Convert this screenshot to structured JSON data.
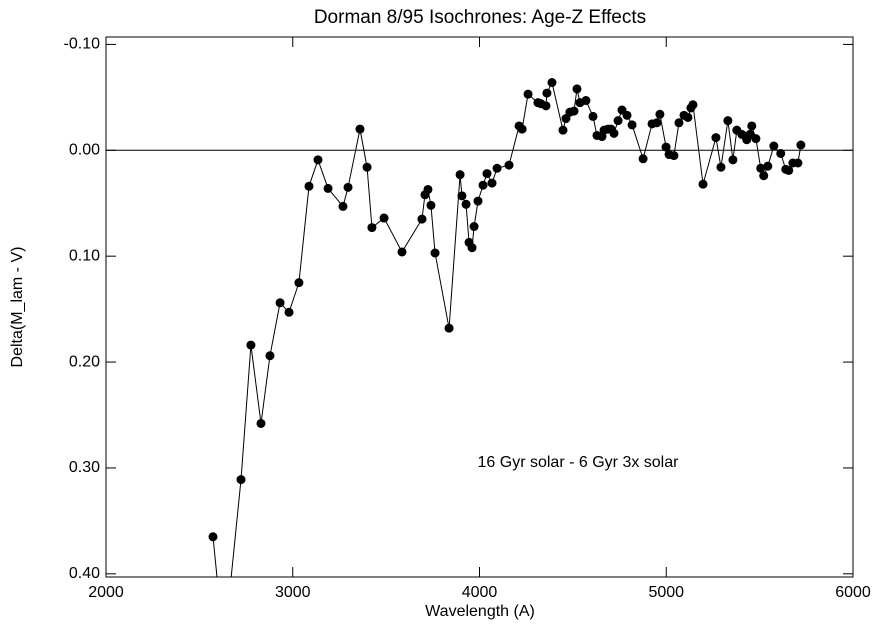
{
  "chart_data": {
    "type": "line",
    "title": "Dorman 8/95 Isochrones: Age-Z Effects",
    "xlabel": "Wavelength (A)",
    "ylabel": "Delta(M_lam - V)",
    "annotation": "16 Gyr solar - 6 Gyr 3x solar",
    "color": "#000000",
    "markers": true,
    "reference_line": 0,
    "xlim": [
      2000,
      6000
    ],
    "ylim": [
      0.403,
      -0.107
    ],
    "xticks": [
      2000,
      3000,
      4000,
      5000,
      6000
    ],
    "yticks": [
      {
        "value": -0.1,
        "label": "-0.10"
      },
      {
        "value": 0,
        "label": "0.00"
      },
      {
        "value": 0.1,
        "label": "0.10"
      },
      {
        "value": 0.2,
        "label": "0.20"
      },
      {
        "value": 0.3,
        "label": "0.30"
      },
      {
        "value": 0.4,
        "label": "0.40"
      }
    ],
    "x": [
      2573,
      2632,
      2723,
      2776,
      2830,
      2878,
      2932,
      2980,
      3033,
      3087,
      3135,
      3189,
      3269,
      3296,
      3360,
      3398,
      3424,
      3489,
      3585,
      3692,
      3708,
      3724,
      3740,
      3762,
      3837,
      3896,
      3906,
      3928,
      3944,
      3960,
      3971,
      3992,
      4019,
      4040,
      4067,
      4094,
      4158,
      4212,
      4228,
      4260,
      4313,
      4329,
      4356,
      4361,
      4388,
      4447,
      4463,
      4484,
      4506,
      4522,
      4538,
      4570,
      4608,
      4629,
      4656,
      4667,
      4688,
      4704,
      4720,
      4742,
      4763,
      4790,
      4817,
      4876,
      4924,
      4950,
      4966,
      4999,
      5015,
      5041,
      5068,
      5095,
      5116,
      5132,
      5143,
      5197,
      5266,
      5293,
      5330,
      5357,
      5378,
      5405,
      5431,
      5448,
      5458,
      5480,
      5506,
      5522,
      5544,
      5576,
      5613,
      5640,
      5656,
      5678,
      5705,
      5721
    ],
    "values": [
      0.365,
      0.47,
      0.311,
      0.184,
      0.258,
      0.194,
      0.144,
      0.153,
      0.125,
      0.034,
      0.009,
      0.036,
      0.053,
      0.035,
      -0.02,
      0.016,
      0.073,
      0.064,
      0.096,
      0.065,
      0.042,
      0.037,
      0.052,
      0.097,
      0.168,
      0.023,
      0.043,
      0.051,
      0.087,
      0.092,
      0.072,
      0.048,
      0.033,
      0.022,
      0.031,
      0.017,
      0.014,
      -0.023,
      -0.02,
      -0.053,
      -0.045,
      -0.044,
      -0.042,
      -0.054,
      -0.064,
      -0.019,
      -0.03,
      -0.036,
      -0.037,
      -0.058,
      -0.045,
      -0.047,
      -0.032,
      -0.014,
      -0.013,
      -0.019,
      -0.02,
      -0.02,
      -0.016,
      -0.028,
      -0.038,
      -0.033,
      -0.024,
      0.008,
      -0.025,
      -0.026,
      -0.034,
      -0.003,
      0.004,
      0.005,
      -0.026,
      -0.033,
      -0.031,
      -0.04,
      -0.043,
      0.032,
      -0.012,
      0.016,
      -0.028,
      0.009,
      -0.019,
      -0.015,
      -0.01,
      -0.015,
      -0.023,
      -0.011,
      0.017,
      0.024,
      0.015,
      -0.004,
      0.003,
      0.018,
      0.019,
      0.012,
      0.012,
      -0.005
    ]
  }
}
